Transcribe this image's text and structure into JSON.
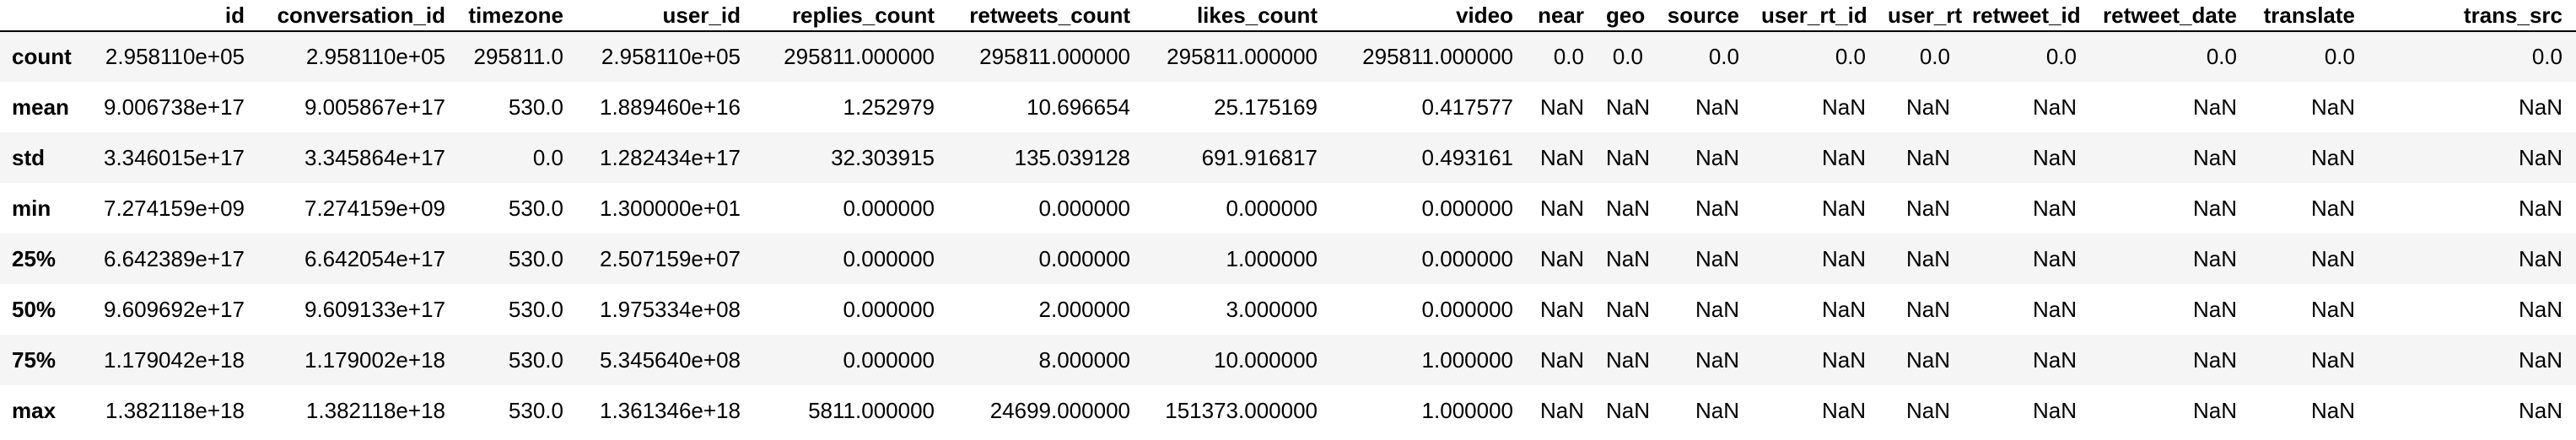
{
  "table": {
    "index_header": "",
    "columns": [
      "id",
      "conversation_id",
      "timezone",
      "user_id",
      "replies_count",
      "retweets_count",
      "likes_count",
      "video",
      "near",
      "geo",
      "source",
      "user_rt_id",
      "user_rt",
      "retweet_id",
      "retweet_date",
      "translate",
      "trans_src"
    ],
    "rows": [
      {
        "label": "count",
        "cells": [
          "2.958110e+05",
          "2.958110e+05",
          "295811.0",
          "2.958110e+05",
          "295811.000000",
          "295811.000000",
          "295811.000000",
          "295811.000000",
          "0.0",
          "0.0",
          "0.0",
          "0.0",
          "0.0",
          "0.0",
          "0.0",
          "0.0",
          "0.0"
        ]
      },
      {
        "label": "mean",
        "cells": [
          "9.006738e+17",
          "9.005867e+17",
          "530.0",
          "1.889460e+16",
          "1.252979",
          "10.696654",
          "25.175169",
          "0.417577",
          "NaN",
          "NaN",
          "NaN",
          "NaN",
          "NaN",
          "NaN",
          "NaN",
          "NaN",
          "NaN"
        ]
      },
      {
        "label": "std",
        "cells": [
          "3.346015e+17",
          "3.345864e+17",
          "0.0",
          "1.282434e+17",
          "32.303915",
          "135.039128",
          "691.916817",
          "0.493161",
          "NaN",
          "NaN",
          "NaN",
          "NaN",
          "NaN",
          "NaN",
          "NaN",
          "NaN",
          "NaN"
        ]
      },
      {
        "label": "min",
        "cells": [
          "7.274159e+09",
          "7.274159e+09",
          "530.0",
          "1.300000e+01",
          "0.000000",
          "0.000000",
          "0.000000",
          "0.000000",
          "NaN",
          "NaN",
          "NaN",
          "NaN",
          "NaN",
          "NaN",
          "NaN",
          "NaN",
          "NaN"
        ]
      },
      {
        "label": "25%",
        "cells": [
          "6.642389e+17",
          "6.642054e+17",
          "530.0",
          "2.507159e+07",
          "0.000000",
          "0.000000",
          "1.000000",
          "0.000000",
          "NaN",
          "NaN",
          "NaN",
          "NaN",
          "NaN",
          "NaN",
          "NaN",
          "NaN",
          "NaN"
        ]
      },
      {
        "label": "50%",
        "cells": [
          "9.609692e+17",
          "9.609133e+17",
          "530.0",
          "1.975334e+08",
          "0.000000",
          "2.000000",
          "3.000000",
          "0.000000",
          "NaN",
          "NaN",
          "NaN",
          "NaN",
          "NaN",
          "NaN",
          "NaN",
          "NaN",
          "NaN"
        ]
      },
      {
        "label": "75%",
        "cells": [
          "1.179042e+18",
          "1.179002e+18",
          "530.0",
          "5.345640e+08",
          "0.000000",
          "8.000000",
          "10.000000",
          "1.000000",
          "NaN",
          "NaN",
          "NaN",
          "NaN",
          "NaN",
          "NaN",
          "NaN",
          "NaN",
          "NaN"
        ]
      },
      {
        "label": "max",
        "cells": [
          "1.382118e+18",
          "1.382118e+18",
          "530.0",
          "1.361346e+18",
          "5811.000000",
          "24699.000000",
          "151373.000000",
          "1.000000",
          "NaN",
          "NaN",
          "NaN",
          "NaN",
          "NaN",
          "NaN",
          "NaN",
          "NaN",
          "NaN"
        ]
      }
    ]
  }
}
